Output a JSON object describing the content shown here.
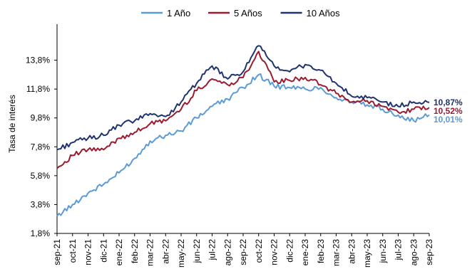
{
  "chart_data": {
    "type": "line",
    "title": "",
    "xlabel": "",
    "ylabel": "Tasa de interés",
    "ylim": [
      1.8,
      15.8
    ],
    "yticks": [
      "1,8%",
      "3,8%",
      "5,8%",
      "7,8%",
      "9,8%",
      "11,8%",
      "13,8%"
    ],
    "ytick_values": [
      1.8,
      3.8,
      5.8,
      7.8,
      9.8,
      11.8,
      13.8
    ],
    "grid": false,
    "legend_position": "top",
    "categories": [
      "sep-21",
      "oct-21",
      "nov-21",
      "dic-21",
      "ene-22",
      "feb-22",
      "mar-22",
      "abr-22",
      "may-22",
      "jun-22",
      "jul-22",
      "ago-22",
      "sep-22",
      "oct-22",
      "nov-22",
      "dic-22",
      "ene-23",
      "feb-23",
      "mar-23",
      "abr-23",
      "may-23",
      "jun-23",
      "jul-23",
      "ago-23",
      "sep-23"
    ],
    "series": [
      {
        "name": "1 Año",
        "color": "#5b9bd5",
        "values": [
          3.0,
          3.8,
          4.6,
          5.2,
          6.0,
          7.0,
          8.2,
          8.6,
          8.9,
          9.8,
          10.6,
          11.1,
          11.9,
          12.8,
          12.0,
          11.9,
          11.8,
          11.9,
          11.2,
          10.9,
          10.7,
          10.4,
          10.0,
          9.6,
          10.01
        ],
        "end_label": "10,01%"
      },
      {
        "name": "5 Años",
        "color": "#9b1b30",
        "values": [
          6.3,
          7.2,
          7.6,
          7.6,
          8.4,
          8.8,
          9.4,
          9.6,
          10.4,
          11.7,
          12.5,
          12.1,
          12.6,
          14.4,
          12.3,
          12.4,
          12.6,
          12.1,
          11.5,
          10.9,
          11.0,
          10.6,
          10.2,
          10.4,
          10.52
        ],
        "end_label": "10,52%"
      },
      {
        "name": "10 Años",
        "color": "#1f3370",
        "values": [
          7.6,
          8.1,
          8.4,
          8.6,
          9.3,
          9.6,
          10.1,
          9.9,
          10.9,
          12.2,
          13.4,
          12.5,
          13.0,
          14.8,
          13.4,
          13.0,
          13.5,
          13.1,
          12.2,
          11.3,
          11.2,
          10.9,
          10.6,
          10.9,
          10.87
        ],
        "end_label": "10,87%"
      }
    ]
  }
}
